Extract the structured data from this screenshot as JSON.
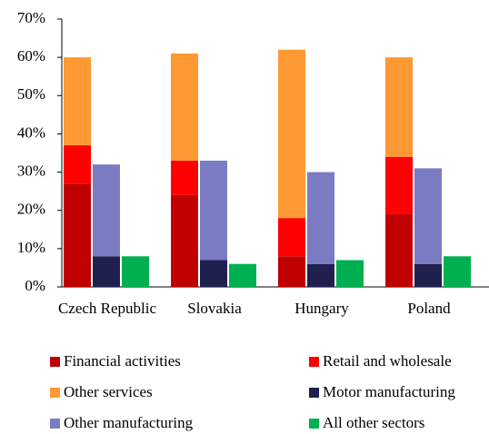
{
  "chart_data": {
    "type": "grouped-stacked-bar",
    "categories": [
      "Czech Republic",
      "Slovakia",
      "Hungary",
      "Poland"
    ],
    "series": [
      {
        "name": "Financial activities",
        "color": "#c00000",
        "stack": 0,
        "values": [
          27,
          24,
          8,
          19
        ]
      },
      {
        "name": "Retail and wholesale",
        "color": "#ff0000",
        "stack": 0,
        "values": [
          10,
          9,
          10,
          15
        ]
      },
      {
        "name": "Other services",
        "color": "#ff9933",
        "stack": 0,
        "values": [
          23,
          28,
          44,
          26
        ]
      },
      {
        "name": "Motor manufacturing",
        "color": "#20204f",
        "stack": 1,
        "values": [
          8,
          7,
          6,
          6
        ]
      },
      {
        "name": "Other manufacturing",
        "color": "#7b7bc4",
        "stack": 1,
        "values": [
          24,
          26,
          24,
          25
        ]
      },
      {
        "name": "All other sectors",
        "color": "#00b050",
        "stack": 2,
        "values": [
          8,
          6,
          7,
          8
        ]
      }
    ],
    "ylim": [
      0,
      70
    ],
    "yticks": [
      {
        "value": 0,
        "label": "0%"
      },
      {
        "value": 10,
        "label": "10%"
      },
      {
        "value": 20,
        "label": "20%"
      },
      {
        "value": 30,
        "label": "30%"
      },
      {
        "value": 40,
        "label": "40%"
      },
      {
        "value": 50,
        "label": "50%"
      },
      {
        "value": 60,
        "label": "60%"
      },
      {
        "value": 70,
        "label": "70%"
      }
    ],
    "grid": false,
    "legend": "bottom"
  }
}
